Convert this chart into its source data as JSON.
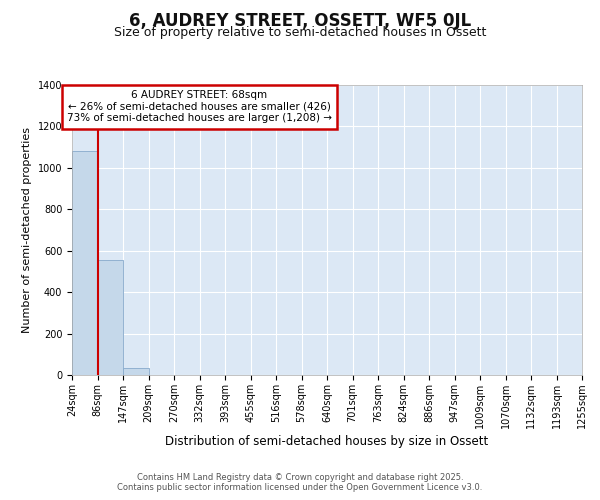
{
  "title": "6, AUDREY STREET, OSSETT, WF5 0JL",
  "subtitle": "Size of property relative to semi-detached houses in Ossett",
  "xlabel": "Distribution of semi-detached houses by size in Ossett",
  "ylabel": "Number of semi-detached properties",
  "bin_labels": [
    "24sqm",
    "86sqm",
    "147sqm",
    "209sqm",
    "270sqm",
    "332sqm",
    "393sqm",
    "455sqm",
    "516sqm",
    "578sqm",
    "640sqm",
    "701sqm",
    "763sqm",
    "824sqm",
    "886sqm",
    "947sqm",
    "1009sqm",
    "1070sqm",
    "1132sqm",
    "1193sqm",
    "1255sqm"
  ],
  "bar_values": [
    1080,
    555,
    35,
    0,
    0,
    0,
    0,
    0,
    0,
    0,
    0,
    0,
    0,
    0,
    0,
    0,
    0,
    0,
    0,
    0
  ],
  "bar_color": "#c5d8ea",
  "bar_edge_color": "#88aacc",
  "vline_x_bin": 1,
  "vline_color": "#cc0000",
  "annotation_box_color": "#cc0000",
  "ann_line1": "6 AUDREY STREET: 68sqm",
  "ann_line2": "← 26% of semi-detached houses are smaller (426)",
  "ann_line3": "73% of semi-detached houses are larger (1,208) →",
  "ylim": [
    0,
    1400
  ],
  "yticks": [
    0,
    200,
    400,
    600,
    800,
    1000,
    1200,
    1400
  ],
  "figure_bg": "#ffffff",
  "axes_bg": "#dce8f5",
  "grid_color": "#ffffff",
  "footer_line1": "Contains HM Land Registry data © Crown copyright and database right 2025.",
  "footer_line2": "Contains public sector information licensed under the Open Government Licence v3.0.",
  "title_fontsize": 12,
  "subtitle_fontsize": 9,
  "ylabel_fontsize": 8,
  "xlabel_fontsize": 8.5,
  "tick_fontsize": 7,
  "ann_fontsize": 7.5,
  "footer_fontsize": 6
}
